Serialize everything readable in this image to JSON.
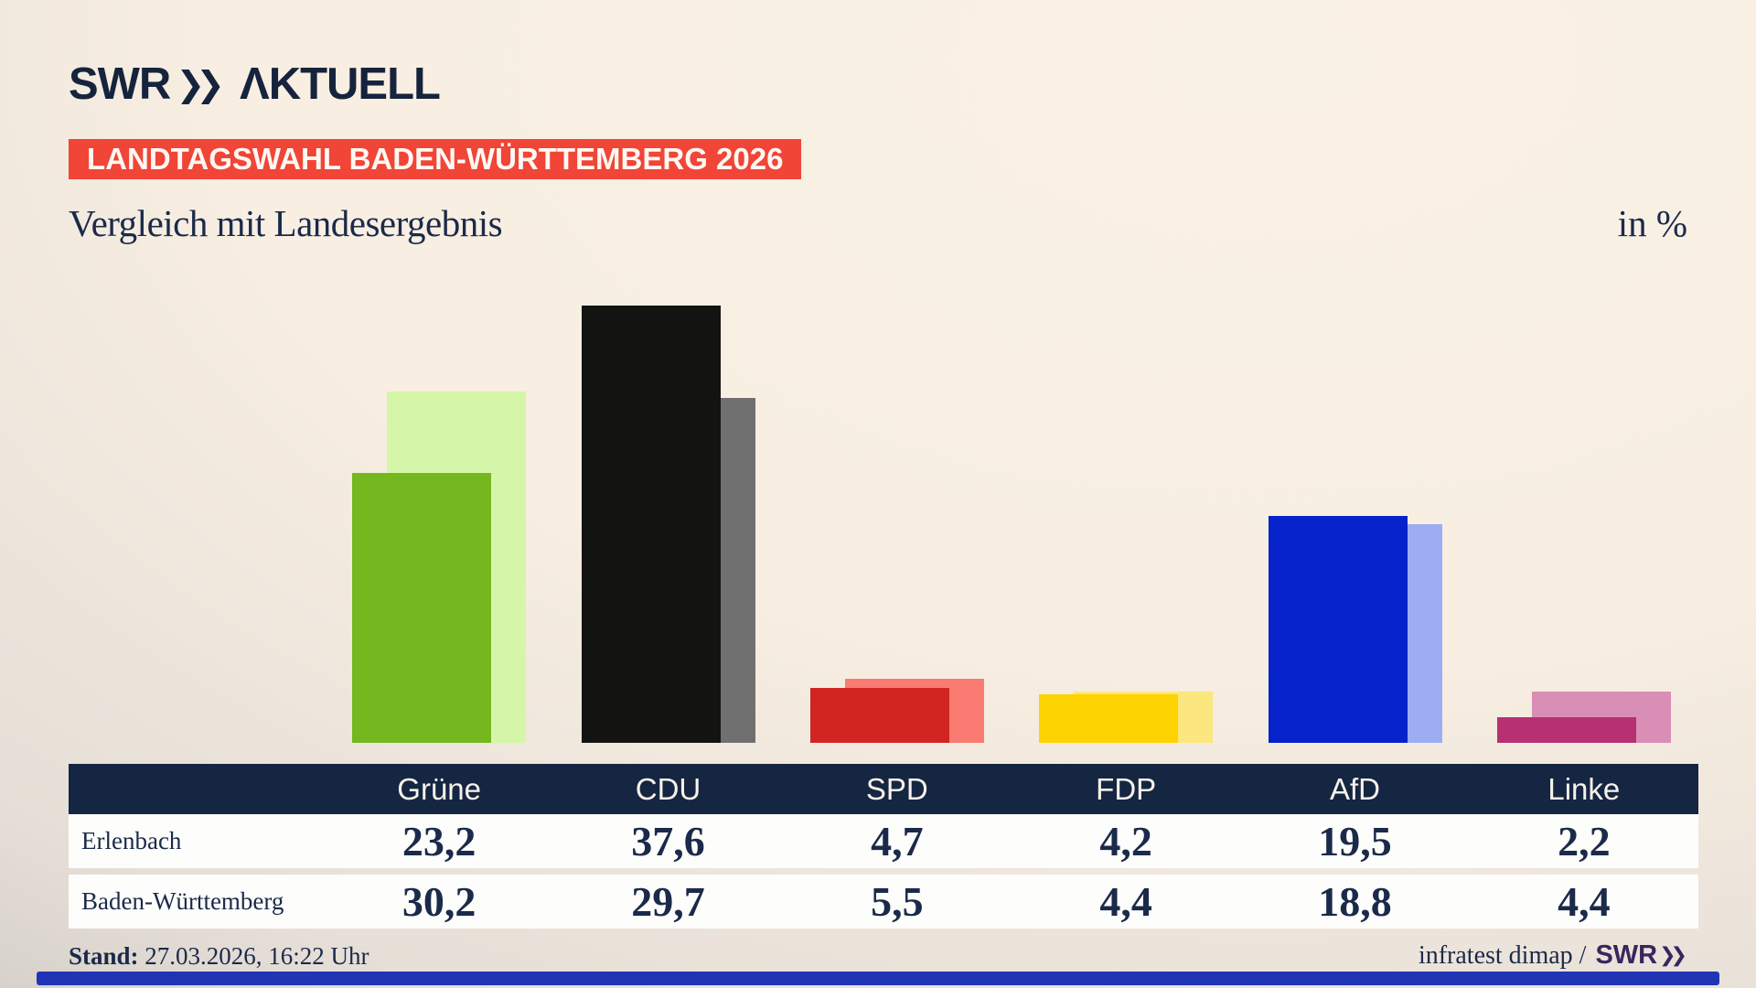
{
  "brand": {
    "swr": "SWR",
    "chevrons": "❯❯",
    "aktuell": "ΛKTUELL"
  },
  "badge": {
    "label": "LANDTAGSWAHL BADEN-WÜRTTEMBERG 2026"
  },
  "title": "Vergleich mit Landesergebnis",
  "unit_label": "in %",
  "chart_data": {
    "type": "bar",
    "title": "Vergleich mit Landesergebnis",
    "xlabel": "",
    "ylabel": "in %",
    "ylim": [
      0,
      40
    ],
    "grid": false,
    "legend_position": "table-rows-below",
    "categories": [
      "Grüne",
      "CDU",
      "SPD",
      "FDP",
      "AfD",
      "Linke"
    ],
    "series": [
      {
        "name": "Erlenbach",
        "role": "front",
        "values": [
          23.2,
          37.6,
          4.7,
          4.2,
          19.5,
          2.2
        ],
        "colors": [
          "#74b71e",
          "#131312",
          "#d22521",
          "#fdd201",
          "#0522cb",
          "#b73072"
        ]
      },
      {
        "name": "Baden-Württemberg",
        "role": "back",
        "values": [
          30.2,
          29.7,
          5.5,
          4.4,
          18.8,
          4.4
        ],
        "colors": [
          "#d5f6a8",
          "#717070",
          "#f97b71",
          "#fbe77d",
          "#9cadf4",
          "#d98eb5"
        ]
      }
    ]
  },
  "table": {
    "row_labels": [
      "Erlenbach",
      "Baden-Württemberg"
    ],
    "display_values": [
      [
        "23,2",
        "37,6",
        "4,7",
        "4,2",
        "19,5",
        "2,2"
      ],
      [
        "30,2",
        "29,7",
        "5,5",
        "4,4",
        "18,8",
        "4,4"
      ]
    ]
  },
  "footer": {
    "stand_label": "Stand:",
    "stand_value": " 27.03.2026, 16:22 Uhr",
    "source_text": "infratest dimap /",
    "source_brand": "SWR",
    "source_brand_chevrons": "❯❯"
  },
  "colors": {
    "background_light": "#f8eee2",
    "background_dark_corner": "#c8c4c0",
    "ink_navy": "#1b2a4a",
    "logo_navy": "#16233c",
    "badge_bg": "#f04537",
    "table_header_bg": "#152642",
    "table_row_bg": "#fdfdfb",
    "bottom_bar": "#2034b5",
    "source_brand_purple": "#38265f"
  }
}
